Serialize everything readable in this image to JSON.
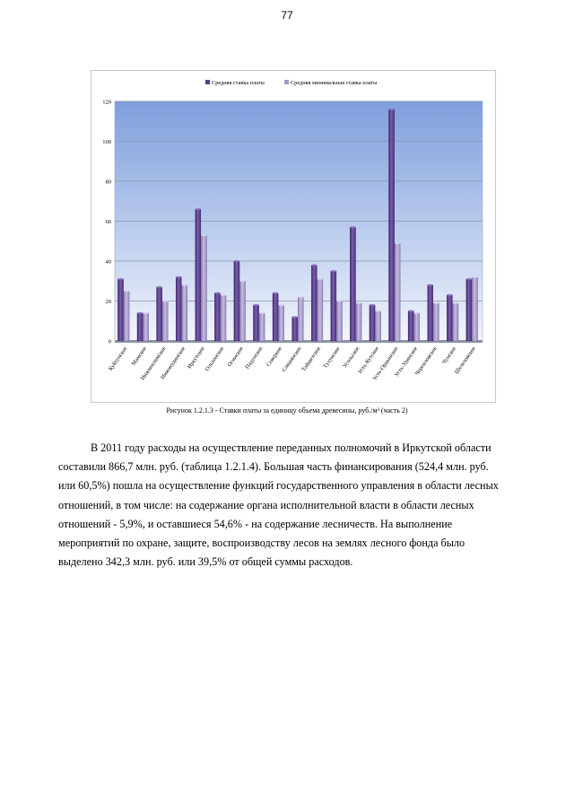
{
  "page": {
    "number": "77"
  },
  "figure": {
    "caption": "Рисунок 1.2.1.3 - Ставки платы за единицу объема древесины, руб./м³ (часть 2)"
  },
  "paragraph": {
    "lines": [
      "В 2011 году расходы на осуществление переданных полномочий в Иркутской области",
      "составили 866,7 млн. руб. (таблица 1.2.1.4). Большая часть финансирования (524,4 млн. руб.",
      "или 60,5%) пошла на осуществление функций государственного управления в области лесных",
      "отношений, в том числе: на содержание органа исполнительной власти в области лесных",
      "отношений - 5,9%, и оставшиеся 54,6% - на содержание лесничеств. На выполнение",
      "мероприятий по охране, защите, воспроизводству лесов на землях лесного фонда было",
      "выделено 342,3 млн. руб. или 39,5% от общей суммы расходов."
    ]
  },
  "chart_data": {
    "type": "bar",
    "title": "",
    "xlabel": "",
    "ylabel": "",
    "ylim": [
      0,
      120
    ],
    "yticks": [
      0,
      20,
      40,
      60,
      80,
      100,
      120
    ],
    "grid": true,
    "legend_position": "top",
    "categories": [
      "Куйтунское",
      "Мамское",
      "Нижнеилимское",
      "Нижнеудинское",
      "Иркутское",
      "Ольхонское",
      "Осинское",
      "Падунское",
      "Северное",
      "Слюдянское",
      "Тайшетское",
      "Тулунское",
      "Усольское",
      "Усть-Кутское",
      "Усть-Ордынское",
      "Усть-Удинское",
      "Черемховское",
      "Чунское",
      "Шелеховское"
    ],
    "series": [
      {
        "name": "Средняя ставка платы",
        "color": "#5b3d8c",
        "values": [
          31,
          14,
          27,
          32,
          66,
          24,
          40,
          18,
          24,
          12,
          38,
          35,
          57,
          18,
          116,
          15,
          28,
          23,
          31
        ]
      },
      {
        "name": "Средняя минимальная ставка платы",
        "color": "#a497c6",
        "values": [
          25,
          14,
          20,
          28,
          53,
          23,
          30,
          14,
          18,
          22,
          31,
          20,
          19,
          15,
          49,
          14,
          19,
          19,
          32
        ]
      }
    ]
  }
}
